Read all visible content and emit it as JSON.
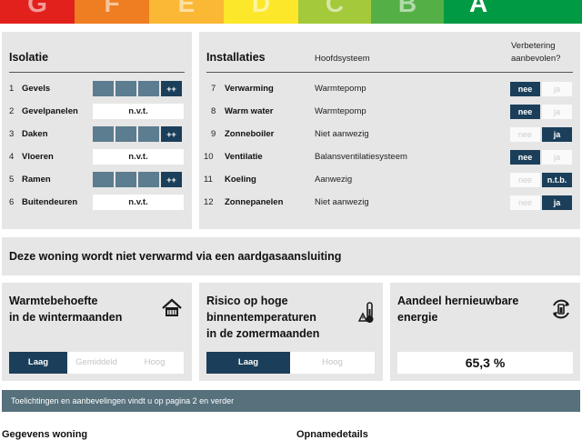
{
  "energy_bands": [
    {
      "letter": "G",
      "color": "#e2211c",
      "active": false
    },
    {
      "letter": "F",
      "color": "#ef7d21",
      "active": false
    },
    {
      "letter": "E",
      "color": "#fbb834",
      "active": false
    },
    {
      "letter": "D",
      "color": "#fce72b",
      "active": false
    },
    {
      "letter": "C",
      "color": "#a4c93a",
      "active": false
    },
    {
      "letter": "B",
      "color": "#54b046",
      "active": false
    },
    {
      "letter": "A",
      "color": "#009a44",
      "active": true
    }
  ],
  "isolatie": {
    "title": "Isolatie",
    "rows": [
      {
        "num": "1",
        "label": "Gevels",
        "value": "++"
      },
      {
        "num": "2",
        "label": "Gevelpanelen",
        "value": "n.v.t."
      },
      {
        "num": "3",
        "label": "Daken",
        "value": "++"
      },
      {
        "num": "4",
        "label": "Vloeren",
        "value": "n.v.t."
      },
      {
        "num": "5",
        "label": "Ramen",
        "value": "++"
      },
      {
        "num": "6",
        "label": "Buitendeuren",
        "value": "n.v.t."
      }
    ]
  },
  "installaties": {
    "title": "Installaties",
    "col_system": "Hoofdsysteem",
    "col_advice_1": "Verbetering",
    "col_advice_2": "aanbevolen?",
    "rows": [
      {
        "num": "7",
        "label": "Verwarming",
        "system": "Warmtepomp",
        "left": "nee",
        "right": "ja",
        "selected": "left"
      },
      {
        "num": "8",
        "label": "Warm water",
        "system": "Warmtepomp",
        "left": "nee",
        "right": "ja",
        "selected": "left"
      },
      {
        "num": "9",
        "label": "Zonneboiler",
        "system": "Niet aanwezig",
        "left": "nee",
        "right": "ja",
        "selected": "right"
      },
      {
        "num": "10",
        "label": "Ventilatie",
        "system": "Balansventilatiesysteem",
        "left": "nee",
        "right": "ja",
        "selected": "left"
      },
      {
        "num": "11",
        "label": "Koeling",
        "system": "Aanwezig",
        "left": "nee",
        "right": "n.t.b.",
        "selected": "right"
      },
      {
        "num": "12",
        "label": "Zonnepanelen",
        "system": "Niet aanwezig",
        "left": "nee",
        "right": "ja",
        "selected": "right"
      }
    ]
  },
  "gas_notice": "Deze woning wordt niet verwarmd via een aardgasaansluiting",
  "warmtebehoefte": {
    "title_1": "Warmtebehoefte",
    "title_2": "in de wintermaanden",
    "options": [
      "Laag",
      "Gemiddeld",
      "Hoog"
    ],
    "selected": 0
  },
  "risico": {
    "title_1": "Risico op hoge",
    "title_2": "binnentemperaturen",
    "title_3": "in de zomermaanden",
    "options": [
      "Laag",
      "Hoog"
    ],
    "selected": 0
  },
  "hernieuwbaar": {
    "title_1": "Aandeel hernieuwbare",
    "title_2": "energie",
    "value": "65,3 %"
  },
  "footer_bar": "Toelichtingen en aanbevelingen vindt u op pagina 2 en verder",
  "bottom_left_partial": "Gegevens woning",
  "bottom_right_partial": "Opnamedetails",
  "colors": {
    "dark": "#1b3f5a",
    "mid": "#5c7c8f",
    "panel": "#e6e6e6",
    "bar": "#56707c"
  }
}
